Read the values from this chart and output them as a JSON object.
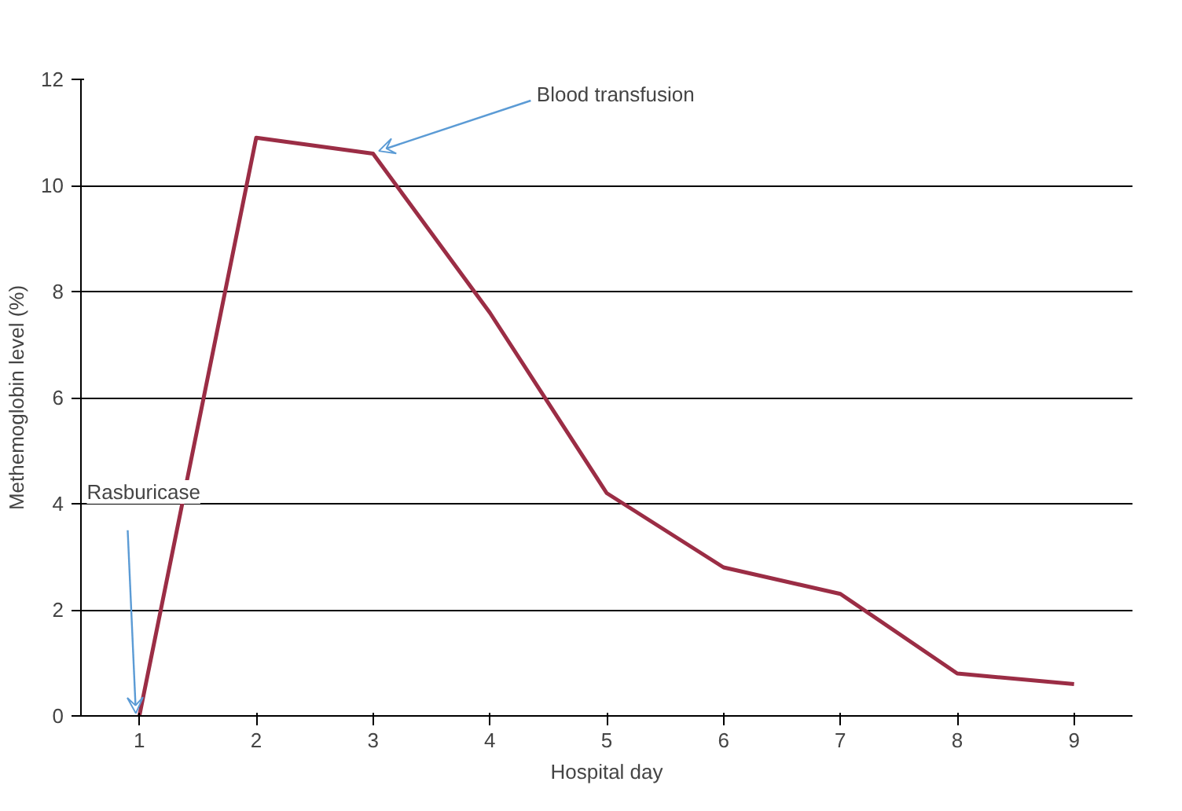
{
  "chart_data": {
    "type": "line",
    "xlabel": "Hospital day",
    "ylabel": "Methemoglobin level (%)",
    "x": [
      1,
      2,
      3,
      4,
      5,
      6,
      7,
      8,
      9
    ],
    "series": [
      {
        "color": "#9b2d45",
        "values": [
          0,
          10.9,
          10.6,
          7.6,
          4.2,
          2.8,
          2.3,
          0.8,
          0.6
        ]
      }
    ],
    "xlim": [
      0.5,
      9.5
    ],
    "xticks": [
      1,
      2,
      3,
      4,
      5,
      6,
      7,
      8,
      9
    ],
    "ylim": [
      0,
      12
    ],
    "yticks": [
      0,
      2,
      4,
      6,
      8,
      10,
      12
    ],
    "grid": "y",
    "marker": "none",
    "line_style": "solid",
    "annotations": [
      {
        "text": "Blood transfusion",
        "x": 3,
        "y": 10.6
      },
      {
        "text": "Rasburicase",
        "x": 1,
        "y": 0
      }
    ]
  }
}
